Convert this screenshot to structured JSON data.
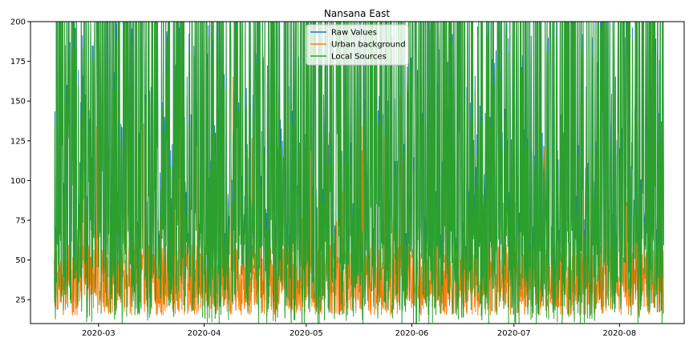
{
  "chart_data": {
    "type": "line",
    "title": "Nansana East",
    "xlabel": "",
    "ylabel": "",
    "x_range": [
      "2020-02-10",
      "2020-08-20"
    ],
    "data_x_range": [
      "2020-02-17",
      "2020-08-14"
    ],
    "ylim": [
      10,
      200
    ],
    "y_ticks": [
      25,
      50,
      75,
      100,
      125,
      150,
      175,
      200
    ],
    "x_ticks": [
      "2020-03",
      "2020-04",
      "2020-05",
      "2020-06",
      "2020-07",
      "2020-08"
    ],
    "x_tick_dates": [
      "2020-03-01",
      "2020-04-01",
      "2020-05-01",
      "2020-06-01",
      "2020-07-01",
      "2020-08-01"
    ],
    "grid": false,
    "legend_position": "top-center",
    "series": [
      {
        "name": "Raw Values",
        "color": "#1f77b4"
      },
      {
        "name": "Urban background",
        "color": "#ff7f0e"
      },
      {
        "name": "Local Sources",
        "color": "#2ca02c"
      }
    ]
  }
}
